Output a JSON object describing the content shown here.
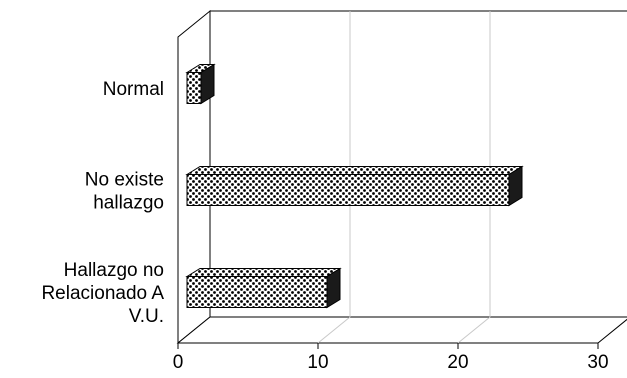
{
  "chart_data": {
    "type": "bar",
    "orientation": "horizontal",
    "style": "3d",
    "categories": [
      "Normal",
      "No existe hallazgo",
      "Hallazgo no Relacionado A V.U."
    ],
    "category_label_lines": [
      [
        "Normal"
      ],
      [
        "No existe",
        "hallazgo"
      ],
      [
        "Hallazgo no",
        "Relacionado A",
        "V.U."
      ]
    ],
    "values": [
      1,
      23,
      10
    ],
    "xlim": [
      0,
      30
    ],
    "x_ticks": [
      "0",
      "10",
      "20",
      "30"
    ],
    "grid": true,
    "legend": "none",
    "title": "",
    "xlabel": "",
    "ylabel": "",
    "colors": {
      "bar_pattern_fg": "#000000",
      "bar_pattern_bg": "#ffffff",
      "bar_end": "#1a1a1a",
      "axis": "#000000",
      "grid": "#c8c8c8"
    }
  }
}
